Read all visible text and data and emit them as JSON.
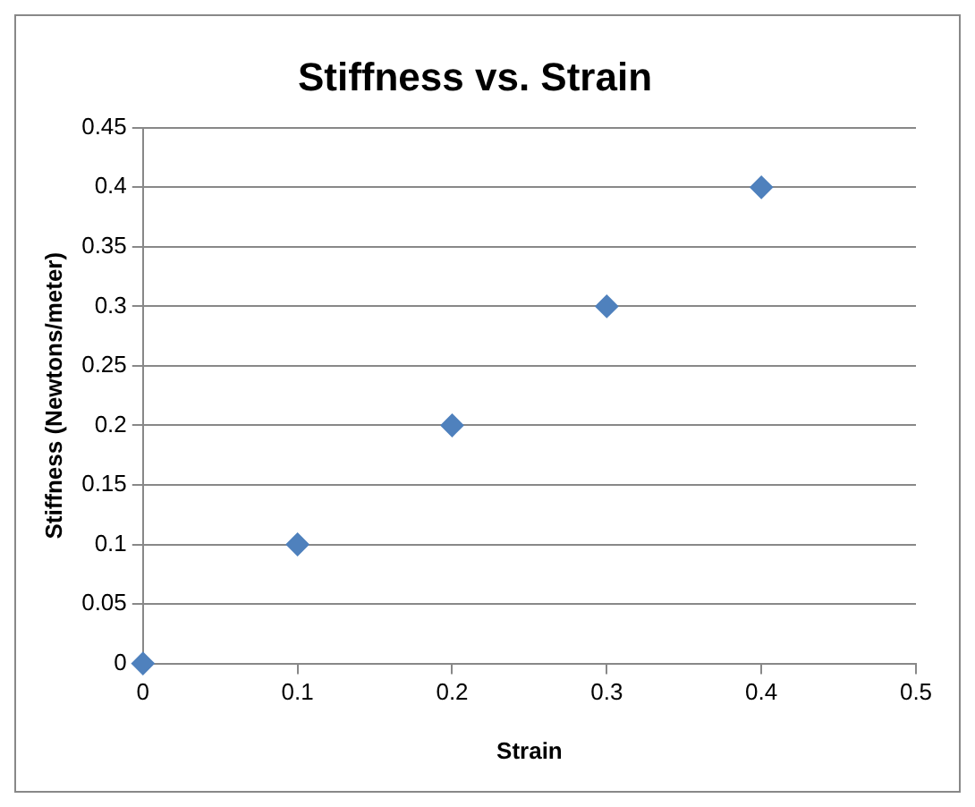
{
  "chart_data": {
    "type": "scatter",
    "title": "Stiffness vs. Strain",
    "xlabel": "Strain",
    "ylabel": "Stiffness (Newtons/meter)",
    "x": [
      0,
      0.1,
      0.2,
      0.3,
      0.4
    ],
    "series": [
      {
        "color": "#4f81bd",
        "values": [
          0,
          0.1,
          0.2,
          0.3,
          0.4
        ]
      }
    ],
    "xlim": [
      0,
      0.5
    ],
    "xticks": [
      0,
      0.1,
      0.2,
      0.3,
      0.4,
      0.5
    ],
    "ylim": [
      0,
      0.45
    ],
    "yticks": [
      0,
      0.05,
      0.1,
      0.15,
      0.2,
      0.25,
      0.3,
      0.35,
      0.4,
      0.45
    ],
    "grid": "y",
    "legend": false,
    "marker": "diamond"
  }
}
